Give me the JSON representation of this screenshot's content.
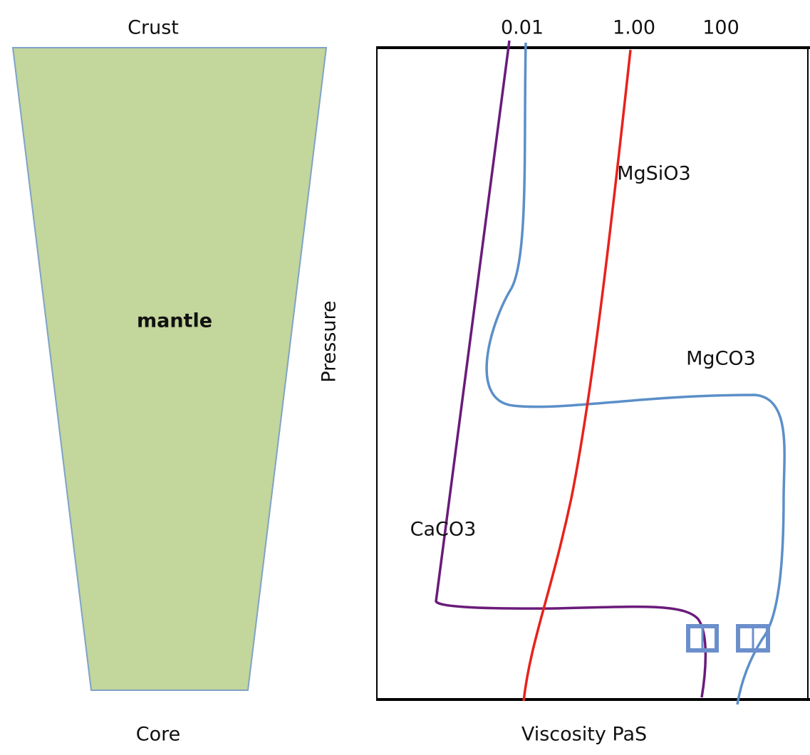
{
  "left": {
    "top_label": "Crust",
    "center_label": "mantle",
    "bottom_label": "Core"
  },
  "chart": {
    "x_ticks": [
      "0.01",
      "1.00",
      "100"
    ],
    "y_label": "Pressure",
    "x_label": "Viscosity PaS",
    "curves": [
      "MgSiO3",
      "MgCO3",
      "CaCO3"
    ]
  }
}
